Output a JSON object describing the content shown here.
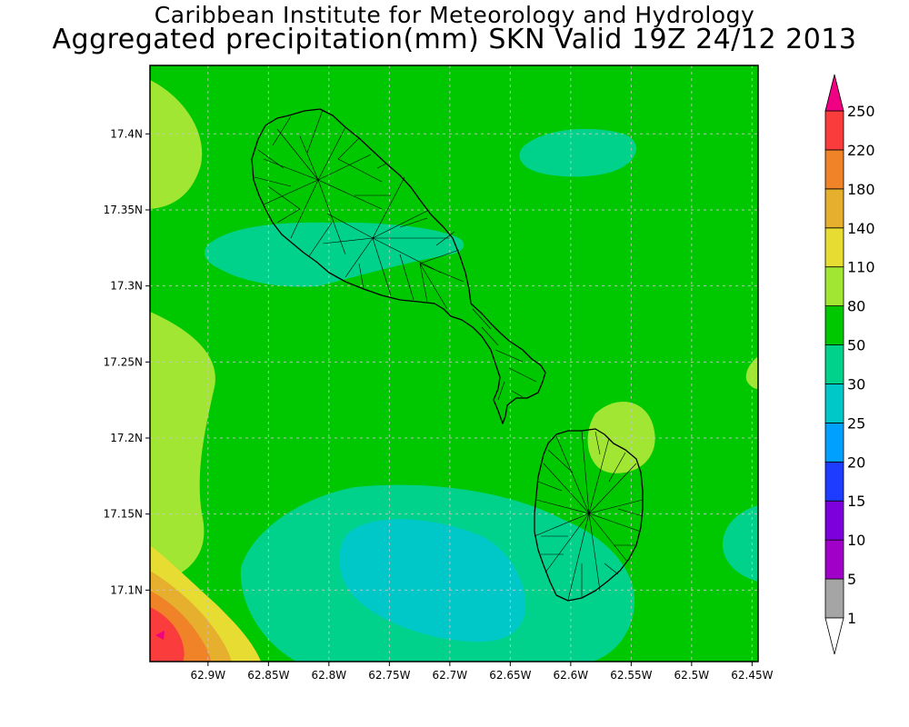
{
  "title": {
    "line1": "Caribbean Institute for Meteorology and Hydrology",
    "line2": "Aggregated precipitation(mm) SKN Valid 19Z 24/12 2013"
  },
  "map": {
    "lat_range": [
      17.053,
      17.445
    ],
    "lon_range": [
      -62.948,
      -62.445
    ],
    "lat_ticks": [
      {
        "value": 17.4,
        "label": "17.4N"
      },
      {
        "value": 17.35,
        "label": "17.35N"
      },
      {
        "value": 17.3,
        "label": "17.3N"
      },
      {
        "value": 17.25,
        "label": "17.25N"
      },
      {
        "value": 17.2,
        "label": "17.2N"
      },
      {
        "value": 17.15,
        "label": "17.15N"
      },
      {
        "value": 17.1,
        "label": "17.1N"
      }
    ],
    "lon_ticks": [
      {
        "value": -62.9,
        "label": "62.9W"
      },
      {
        "value": -62.85,
        "label": "62.85W"
      },
      {
        "value": -62.8,
        "label": "62.8W"
      },
      {
        "value": -62.75,
        "label": "62.75W"
      },
      {
        "value": -62.7,
        "label": "62.7W"
      },
      {
        "value": -62.65,
        "label": "62.65W"
      },
      {
        "value": -62.6,
        "label": "62.6W"
      },
      {
        "value": -62.55,
        "label": "62.55W"
      },
      {
        "value": -62.5,
        "label": "62.5W"
      },
      {
        "value": -62.45,
        "label": "62.45W"
      }
    ],
    "grid": true,
    "background_level_color": "#00c800",
    "islands": [
      "St Kitts",
      "Nevis"
    ]
  },
  "legend": {
    "placement": "right",
    "bins": [
      {
        "label": "1",
        "color": "#ffffff"
      },
      {
        "label": "5",
        "color": "#a5a5a5"
      },
      {
        "label": "10",
        "color": "#a000c8"
      },
      {
        "label": "15",
        "color": "#7d00dc"
      },
      {
        "label": "20",
        "color": "#1e3cff"
      },
      {
        "label": "25",
        "color": "#00a0ff"
      },
      {
        "label": "30",
        "color": "#00c8c8"
      },
      {
        "label": "50",
        "color": "#00d28c"
      },
      {
        "label": "80",
        "color": "#00c800"
      },
      {
        "label": "110",
        "color": "#a0e632"
      },
      {
        "label": "140",
        "color": "#e6dc32"
      },
      {
        "label": "180",
        "color": "#e6af2d"
      },
      {
        "label": "220",
        "color": "#f08228"
      },
      {
        "label": "250",
        "color": "#fa3c3c"
      }
    ],
    "overflow_color": "#f00082"
  }
}
